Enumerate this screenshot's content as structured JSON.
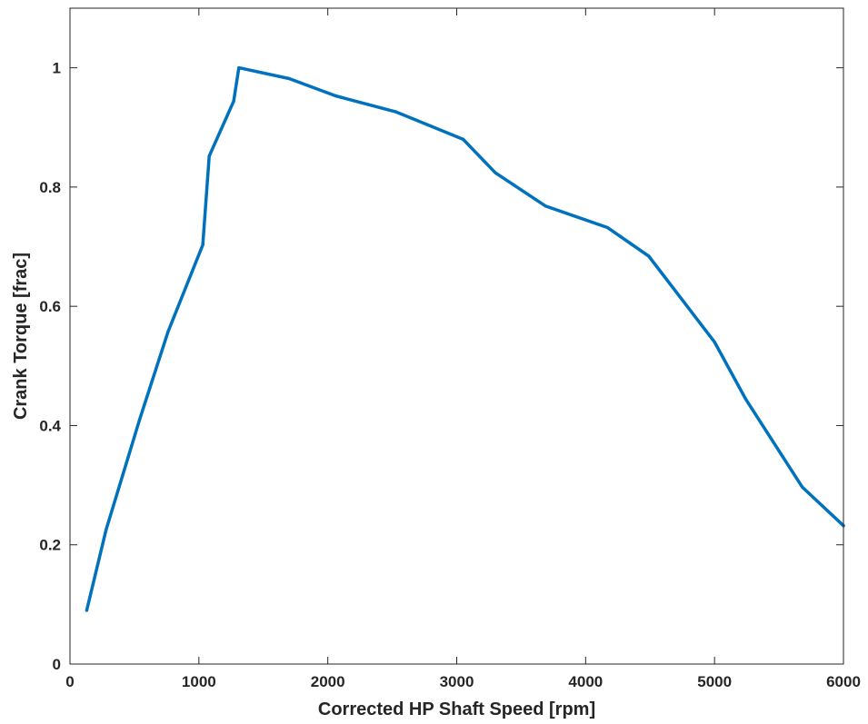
{
  "chart_data": {
    "type": "line",
    "title": "",
    "xlabel": "Corrected HP Shaft Speed [rpm]",
    "ylabel": "Crank Torque [frac]",
    "xlim": [
      0,
      6000
    ],
    "ylim": [
      0,
      1.1
    ],
    "x_ticks": [
      0,
      1000,
      2000,
      3000,
      4000,
      5000,
      6000
    ],
    "y_ticks": [
      0,
      0.2,
      0.4,
      0.6,
      0.8,
      1
    ],
    "grid": false,
    "box": true,
    "line_color": "#0072BD",
    "series": [
      {
        "x": [
          130,
          280,
          540,
          760,
          1030,
          1080,
          1270,
          1310,
          1700,
          2060,
          2530,
          3050,
          3300,
          3690,
          4170,
          4490,
          5000,
          5240,
          5680,
          6000
        ],
        "y": [
          0.09,
          0.225,
          0.41,
          0.557,
          0.703,
          0.852,
          0.944,
          1.0,
          0.982,
          0.953,
          0.926,
          0.88,
          0.824,
          0.768,
          0.732,
          0.684,
          0.54,
          0.445,
          0.297,
          0.232
        ]
      }
    ]
  }
}
